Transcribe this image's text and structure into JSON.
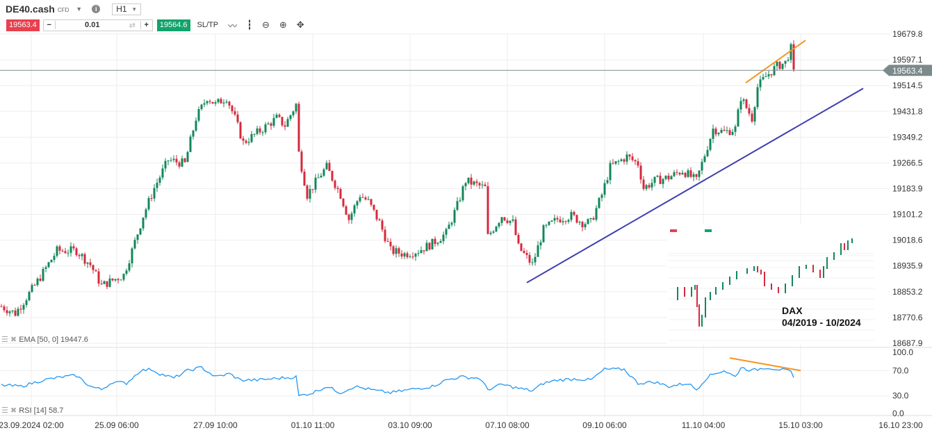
{
  "header": {
    "symbol": "DE40.cash",
    "symbol_type": "CFD",
    "timeframe": "H1",
    "sell_price": "19563.4",
    "buy_price": "19564.6",
    "volume": "0.01",
    "minus": "−",
    "plus": "+",
    "sltp": "SL/TP",
    "icons": [
      "dropdown-caret-icon",
      "info-icon",
      "line-chart-icon",
      "candles-icon",
      "zoom-out-icon",
      "zoom-in-icon",
      "move-icon"
    ]
  },
  "indicators": {
    "ema_label": "EMA [50, 0] 19447.6",
    "rsi_label": "RSI [14] 58.7"
  },
  "colors": {
    "up": "#12875a",
    "down": "#d42a3c",
    "rsi": "#2196f3",
    "trend_orange": "#f7931e",
    "trend_blue": "#3f3fb0",
    "sell": "#e8404e",
    "buy": "#12a36a"
  },
  "inset": {
    "title": "DAX",
    "range": "04/2019 - 10/2024"
  },
  "chart_data": {
    "type": "candlestick",
    "symbol": "DE40.cash",
    "timeframe": "H1",
    "y_ticks": [
      "19679.8",
      "19597.1",
      "19514.5",
      "19431.8",
      "19349.2",
      "19266.5",
      "19183.9",
      "19101.2",
      "19018.6",
      "18935.9",
      "18853.2",
      "18770.6",
      "18687.9"
    ],
    "ylim": [
      18687.9,
      19679.8
    ],
    "current_price": "19563.4",
    "x_ticks": [
      "23.09.2024 02:00",
      "25.09 06:00",
      "27.09 10:00",
      "01.10 11:00",
      "03.10 09:00",
      "07.10 08:00",
      "09.10 06:00",
      "11.10 04:00",
      "15.10 03:00",
      "16.10 23:00"
    ],
    "bars": 286,
    "close_anchors": [
      [
        0,
        18806
      ],
      [
        5,
        18784
      ],
      [
        12,
        18873
      ],
      [
        20,
        18985
      ],
      [
        27,
        18985
      ],
      [
        32,
        18940
      ],
      [
        36,
        18873
      ],
      [
        44,
        18907
      ],
      [
        47,
        18985
      ],
      [
        51,
        19097
      ],
      [
        55,
        19186
      ],
      [
        60,
        19276
      ],
      [
        66,
        19264
      ],
      [
        70,
        19410
      ],
      [
        74,
        19477
      ],
      [
        77,
        19454
      ],
      [
        81,
        19477
      ],
      [
        84,
        19410
      ],
      [
        87,
        19331
      ],
      [
        94,
        19376
      ],
      [
        99,
        19410
      ],
      [
        102,
        19387
      ],
      [
        106,
        19454
      ],
      [
        107,
        19298
      ],
      [
        110,
        19164
      ],
      [
        115,
        19231
      ],
      [
        117,
        19253
      ],
      [
        122,
        19164
      ],
      [
        125,
        19086
      ],
      [
        129,
        19164
      ],
      [
        132,
        19142
      ],
      [
        136,
        19075
      ],
      [
        140,
        18985
      ],
      [
        145,
        18974
      ],
      [
        150,
        18985
      ],
      [
        155,
        19008
      ],
      [
        160,
        19041
      ],
      [
        164,
        19130
      ],
      [
        167,
        19209
      ],
      [
        174,
        19186
      ],
      [
        175,
        19030
      ],
      [
        180,
        19097
      ],
      [
        184,
        19075
      ],
      [
        186,
        18996
      ],
      [
        191,
        18940
      ],
      [
        195,
        19052
      ],
      [
        200,
        19086
      ],
      [
        205,
        19097
      ],
      [
        209,
        19075
      ],
      [
        212,
        19075
      ],
      [
        216,
        19164
      ],
      [
        219,
        19253
      ],
      [
        225,
        19287
      ],
      [
        229,
        19264
      ],
      [
        231,
        19186
      ],
      [
        235,
        19209
      ],
      [
        240,
        19220
      ],
      [
        245,
        19242
      ],
      [
        250,
        19209
      ],
      [
        254,
        19320
      ],
      [
        256,
        19376
      ],
      [
        260,
        19365
      ],
      [
        264,
        19376
      ],
      [
        266,
        19477
      ],
      [
        270,
        19410
      ],
      [
        272,
        19510
      ],
      [
        275,
        19544
      ],
      [
        279,
        19577
      ],
      [
        282,
        19588
      ],
      [
        284,
        19633
      ],
      [
        285,
        19566
      ]
    ],
    "trendlines": [
      {
        "color": "orange",
        "from": [
          267.75,
          19523.4
        ],
        "to": [
          289.25,
          19659.7
        ]
      },
      {
        "color": "blue",
        "from": [
          189,
          18882.3
        ],
        "to": [
          310,
          19505.5
        ]
      }
    ],
    "rsi": {
      "period": 14,
      "last": 58.7,
      "ylim": [
        0,
        100
      ],
      "y_ticks": [
        "100.0",
        "70.0",
        "30.0",
        "0.0"
      ],
      "anchors": [
        [
          0,
          47
        ],
        [
          7,
          45
        ],
        [
          15,
          55
        ],
        [
          22,
          60
        ],
        [
          27,
          62
        ],
        [
          32,
          45
        ],
        [
          36,
          40
        ],
        [
          40,
          52
        ],
        [
          45,
          50
        ],
        [
          50,
          70
        ],
        [
          54,
          72
        ],
        [
          57,
          65
        ],
        [
          62,
          58
        ],
        [
          67,
          70
        ],
        [
          72,
          75
        ],
        [
          77,
          60
        ],
        [
          82,
          65
        ],
        [
          86,
          55
        ],
        [
          92,
          55
        ],
        [
          100,
          58
        ],
        [
          106,
          60
        ],
        [
          107,
          30
        ],
        [
          112,
          35
        ],
        [
          117,
          45
        ],
        [
          122,
          35
        ],
        [
          127,
          45
        ],
        [
          135,
          38
        ],
        [
          140,
          35
        ],
        [
          147,
          40
        ],
        [
          155,
          45
        ],
        [
          160,
          55
        ],
        [
          165,
          60
        ],
        [
          172,
          58
        ],
        [
          175,
          40
        ],
        [
          180,
          48
        ],
        [
          186,
          42
        ],
        [
          191,
          38
        ],
        [
          195,
          50
        ],
        [
          200,
          55
        ],
        [
          207,
          57
        ],
        [
          212,
          55
        ],
        [
          217,
          72
        ],
        [
          224,
          72
        ],
        [
          229,
          50
        ],
        [
          235,
          52
        ],
        [
          240,
          45
        ],
        [
          247,
          50
        ],
        [
          250,
          40
        ],
        [
          254,
          60
        ],
        [
          257,
          66
        ],
        [
          260,
          70
        ],
        [
          264,
          60
        ],
        [
          266,
          75
        ],
        [
          270,
          70
        ],
        [
          275,
          75
        ],
        [
          280,
          72
        ],
        [
          282,
          70
        ],
        [
          284,
          68
        ],
        [
          285,
          59
        ]
      ],
      "divergence_line": {
        "color": "orange",
        "from": [
          262,
          90
        ],
        "to": [
          287.5,
          70
        ]
      }
    }
  }
}
